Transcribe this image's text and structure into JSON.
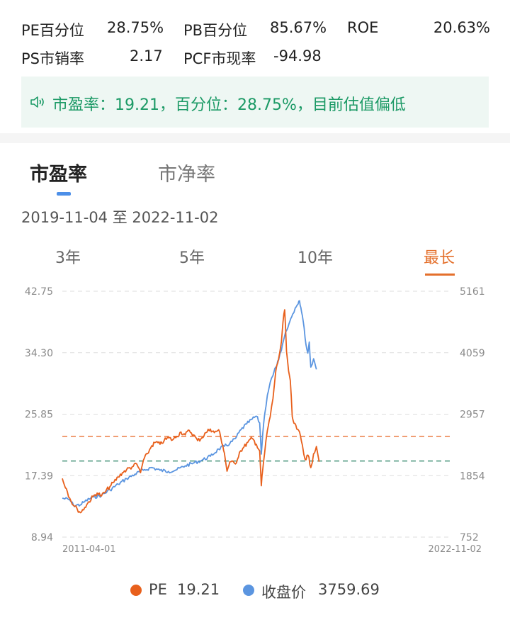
{
  "metrics": {
    "pe_pct_label": "PE百分位",
    "pe_pct_value": "28.75%",
    "pb_pct_label": "PB百分位",
    "pb_pct_value": "85.67%",
    "roe_label": "ROE",
    "roe_value": "20.63%",
    "ps_label": "PS市销率",
    "ps_value": "2.17",
    "pcf_label": "PCF市现率",
    "pcf_value": "-94.98"
  },
  "notice": {
    "icon": "speaker-icon",
    "text": "市盈率：19.21，百分位：28.75%，目前估值偏低",
    "color": "#1c9a66"
  },
  "tabs": [
    {
      "label": "市盈率",
      "active": true
    },
    {
      "label": "市净率",
      "active": false
    }
  ],
  "date_range": "2019-11-04 至 2022-11-02",
  "ranges": [
    {
      "label": "3年",
      "active": false
    },
    {
      "label": "5年",
      "active": false
    },
    {
      "label": "10年",
      "active": false
    },
    {
      "label": "最长",
      "active": true
    }
  ],
  "legend": {
    "pe_label": "PE",
    "pe_value": "19.21",
    "price_label": "收盘价",
    "price_value": "3759.69"
  },
  "colors": {
    "pe": "#e8601c",
    "price": "#5b95e0",
    "accent": "#e4702c",
    "green": "#1c9a66"
  },
  "chart_data": {
    "type": "line",
    "x_start": "2011-04-01",
    "x_end": "2022-11-02",
    "y_left_ticks": [
      "42.75",
      "34.30",
      "25.85",
      "17.39",
      "8.94"
    ],
    "y_right_ticks": [
      "5161",
      "4059",
      "2957",
      "1854",
      "752"
    ],
    "ylim_left": [
      8.94,
      42.75
    ],
    "ylim_right": [
      752,
      5161
    ],
    "reference_lines": [
      {
        "value": 22.8,
        "color": "#e8601c"
      },
      {
        "value": 19.4,
        "color": "#1c7a5a"
      }
    ],
    "series": [
      {
        "name": "PE",
        "axis": "left",
        "points": [
          [
            "2011-04-01",
            17.0
          ],
          [
            "2011-05-15",
            15.6
          ],
          [
            "2011-06-20",
            14.3
          ],
          [
            "2011-08-01",
            13.3
          ],
          [
            "2011-09-10",
            12.8
          ],
          [
            "2011-10-15",
            12.3
          ],
          [
            "2011-12-01",
            13.0
          ],
          [
            "2012-01-15",
            13.8
          ],
          [
            "2012-03-01",
            14.5
          ],
          [
            "2012-04-15",
            15.0
          ],
          [
            "2012-06-01",
            14.6
          ],
          [
            "2012-07-15",
            15.2
          ],
          [
            "2012-09-01",
            15.9
          ],
          [
            "2012-10-15",
            16.5
          ],
          [
            "2012-12-01",
            17.2
          ],
          [
            "2013-01-15",
            17.8
          ],
          [
            "2013-03-01",
            18.2
          ],
          [
            "2013-05-01",
            18.6
          ],
          [
            "2013-06-20",
            19.0
          ],
          [
            "2013-08-01",
            17.8
          ],
          [
            "2013-09-01",
            19.5
          ],
          [
            "2013-10-15",
            20.4
          ],
          [
            "2013-12-01",
            21.5
          ],
          [
            "2014-01-15",
            22.0
          ],
          [
            "2014-03-01",
            21.7
          ],
          [
            "2014-04-15",
            22.2
          ],
          [
            "2014-06-01",
            22.6
          ],
          [
            "2014-07-15",
            22.3
          ],
          [
            "2014-09-01",
            22.8
          ],
          [
            "2014-10-15",
            23.4
          ],
          [
            "2014-12-01",
            23.0
          ],
          [
            "2015-01-15",
            23.6
          ],
          [
            "2015-03-01",
            23.0
          ],
          [
            "2015-04-15",
            22.2
          ],
          [
            "2015-06-01",
            22.6
          ],
          [
            "2015-07-15",
            23.3
          ],
          [
            "2015-09-01",
            23.8
          ],
          [
            "2015-10-15",
            23.3
          ],
          [
            "2015-12-01",
            23.7
          ],
          [
            "2016-01-15",
            21.5
          ],
          [
            "2016-02-01",
            20.5
          ],
          [
            "2016-03-01",
            18.0
          ],
          [
            "2016-04-01",
            19.3
          ],
          [
            "2016-06-01",
            19.0
          ],
          [
            "2016-07-15",
            20.6
          ],
          [
            "2016-09-01",
            21.3
          ],
          [
            "2016-10-15",
            22.0
          ],
          [
            "2016-12-01",
            22.5
          ],
          [
            "2017-01-15",
            21.7
          ],
          [
            "2017-02-20",
            20.8
          ],
          [
            "2017-03-10",
            16.0
          ],
          [
            "2017-03-25",
            18.2
          ],
          [
            "2017-04-15",
            20.5
          ],
          [
            "2017-05-15",
            23.6
          ],
          [
            "2017-06-15",
            25.5
          ],
          [
            "2017-07-15",
            28.0
          ],
          [
            "2017-08-15",
            31.8
          ],
          [
            "2017-09-15",
            33.5
          ],
          [
            "2017-10-15",
            35.8
          ],
          [
            "2017-11-01",
            38.5
          ],
          [
            "2017-11-20",
            40.2
          ],
          [
            "2017-12-10",
            34.5
          ],
          [
            "2018-01-01",
            31.8
          ],
          [
            "2018-01-20",
            30.5
          ],
          [
            "2018-02-10",
            25.5
          ],
          [
            "2018-03-01",
            24.6
          ],
          [
            "2018-04-01",
            23.8
          ],
          [
            "2018-05-01",
            23.4
          ],
          [
            "2018-06-01",
            21.6
          ],
          [
            "2018-07-01",
            19.6
          ],
          [
            "2018-08-01",
            20.2
          ],
          [
            "2018-09-01",
            18.5
          ],
          [
            "2018-10-01",
            20.4
          ],
          [
            "2018-11-01",
            21.4
          ],
          [
            "2018-12-01",
            19.3
          ]
        ]
      },
      {
        "name": "收盘价",
        "axis": "right",
        "points": [
          [
            "2011-04-01",
            1450
          ],
          [
            "2011-06-20",
            1420
          ],
          [
            "2011-08-01",
            1320
          ],
          [
            "2011-10-15",
            1330
          ],
          [
            "2011-12-01",
            1390
          ],
          [
            "2012-03-01",
            1470
          ],
          [
            "2012-06-01",
            1500
          ],
          [
            "2012-09-01",
            1600
          ],
          [
            "2012-12-01",
            1700
          ],
          [
            "2013-03-01",
            1800
          ],
          [
            "2013-06-01",
            1880
          ],
          [
            "2013-09-01",
            1950
          ],
          [
            "2013-12-01",
            2000
          ],
          [
            "2014-03-01",
            1950
          ],
          [
            "2014-06-01",
            1930
          ],
          [
            "2014-09-01",
            1960
          ],
          [
            "2014-12-01",
            2030
          ],
          [
            "2015-03-01",
            2080
          ],
          [
            "2015-06-01",
            2130
          ],
          [
            "2015-09-01",
            2200
          ],
          [
            "2015-12-01",
            2330
          ],
          [
            "2016-02-01",
            2380
          ],
          [
            "2016-04-01",
            2430
          ],
          [
            "2016-06-01",
            2520
          ],
          [
            "2016-08-01",
            2680
          ],
          [
            "2016-10-01",
            2780
          ],
          [
            "2016-12-01",
            2870
          ],
          [
            "2017-01-15",
            2920
          ],
          [
            "2017-02-20",
            2800
          ],
          [
            "2017-03-10",
            2240
          ],
          [
            "2017-03-25",
            2600
          ],
          [
            "2017-04-15",
            2950
          ],
          [
            "2017-05-15",
            3300
          ],
          [
            "2017-06-15",
            3530
          ],
          [
            "2017-07-15",
            3650
          ],
          [
            "2017-08-15",
            3800
          ],
          [
            "2017-09-15",
            3930
          ],
          [
            "2017-10-15",
            4100
          ],
          [
            "2017-11-15",
            4330
          ],
          [
            "2017-12-15",
            4470
          ],
          [
            "2018-01-15",
            4620
          ],
          [
            "2018-02-15",
            4750
          ],
          [
            "2018-03-15",
            4860
          ],
          [
            "2018-04-15",
            4930
          ],
          [
            "2018-05-01",
            4990
          ],
          [
            "2018-05-15",
            4870
          ],
          [
            "2018-06-01",
            4720
          ],
          [
            "2018-06-20",
            4500
          ],
          [
            "2018-07-10",
            4200
          ],
          [
            "2018-07-30",
            4050
          ],
          [
            "2018-08-15",
            4250
          ],
          [
            "2018-09-01",
            3800
          ],
          [
            "2018-10-01",
            3950
          ],
          [
            "2018-11-01",
            3759.69
          ]
        ]
      }
    ]
  }
}
